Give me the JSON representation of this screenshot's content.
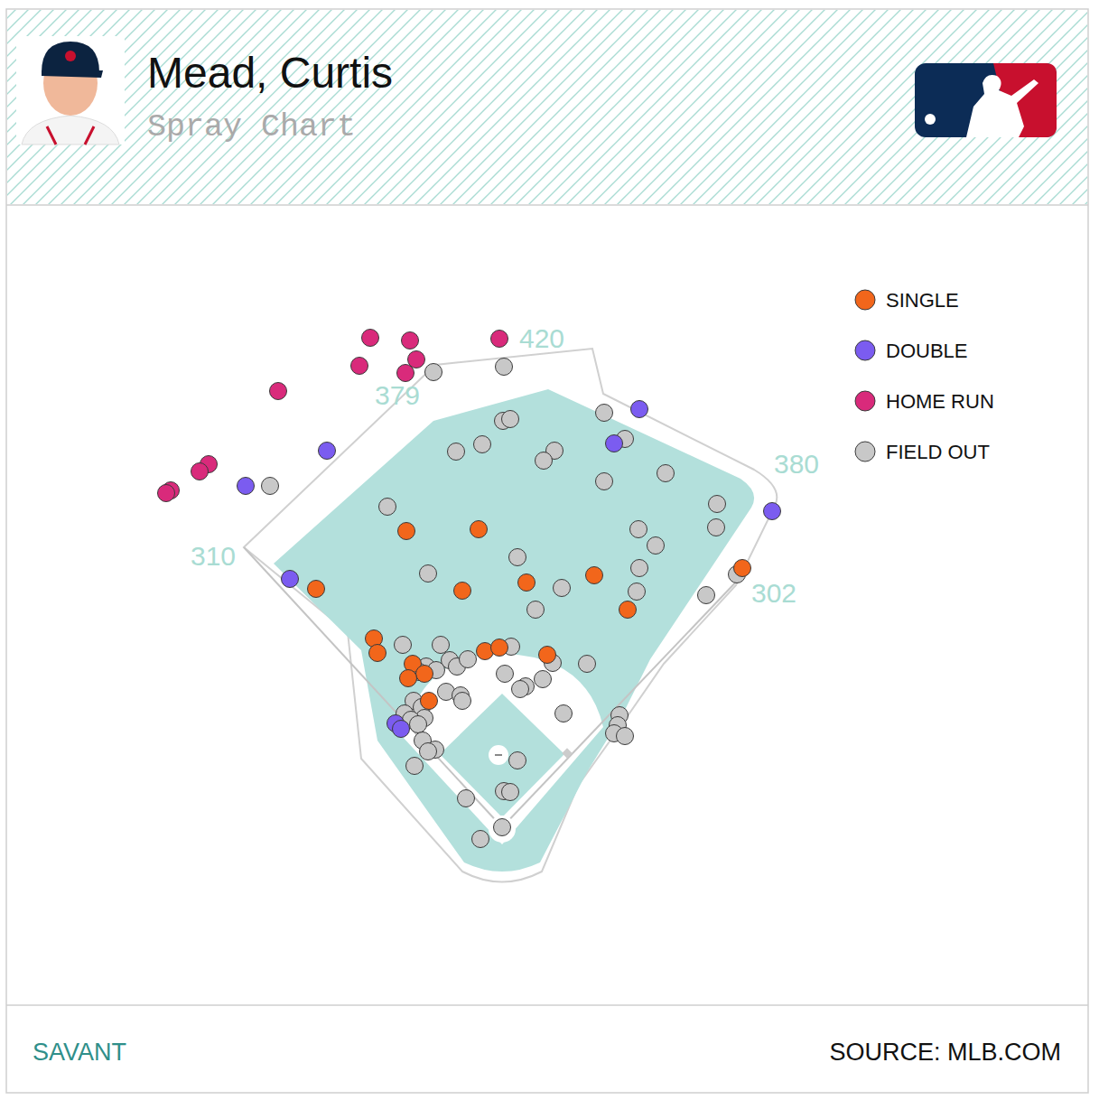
{
  "chart_data": {
    "type": "scatter",
    "title": "Mead, Curtis",
    "subtitle": "Spray Chart",
    "brand": "SAVANT",
    "source": "SOURCE: MLB.COM",
    "xlim": [
      8,
      1205
    ],
    "ylim": [
      1113,
      228
    ],
    "tick_labels": false,
    "grid": false,
    "legend": "upper right",
    "marker": "circle",
    "fence_distances": [
      310,
      379,
      420,
      380,
      302
    ],
    "series": [
      {
        "name": "SINGLE",
        "color": "#f2661b",
        "x": [
          450,
          530,
          350,
          512,
          583,
          658,
          695,
          822,
          414,
          418,
          457,
          470,
          452,
          537,
          553,
          606,
          475
        ],
        "values": [
          588,
          586,
          652,
          654,
          645,
          637,
          675,
          629,
          707,
          723,
          735,
          746,
          751,
          721,
          717,
          725,
          776
        ]
      },
      {
        "name": "DOUBLE",
        "color": "#7b5cf0",
        "x": [
          708,
          680,
          362,
          272,
          855,
          321,
          438,
          444
        ],
        "values": [
          453,
          491,
          499,
          538,
          566,
          641,
          801,
          807
        ]
      },
      {
        "name": "HOME RUN",
        "color": "#d92a7b",
        "x": [
          410,
          454,
          398,
          461,
          449,
          553,
          308,
          231,
          221,
          189,
          184
        ],
        "values": [
          374,
          377,
          405,
          398,
          413,
          375,
          433,
          514,
          522,
          543,
          546
        ]
      },
      {
        "name": "FIELD OUT",
        "color": "#c8c8c8",
        "x": [
          480,
          558,
          557,
          565,
          505,
          534,
          614,
          602,
          669,
          692,
          737,
          669,
          429,
          794,
          793,
          707,
          726,
          573,
          474,
          622,
          708,
          705,
          593,
          782,
          816,
          446,
          488,
          498,
          472,
          483,
          464,
          506,
          518,
          566,
          559,
          612,
          650,
          601,
          582,
          576,
          494,
          510,
          512,
          458,
          467,
          448,
          470,
          455,
          463,
          624,
          686,
          684,
          680,
          692,
          468,
          482,
          474,
          459,
          573,
          558,
          565,
          516,
          556,
          532,
          299
        ],
        "values": [
          412,
          406,
          466,
          464,
          500,
          492,
          499,
          510,
          457,
          486,
          524,
          533,
          561,
          558,
          584,
          586,
          604,
          617,
          635,
          651,
          629,
          655,
          675,
          659,
          636,
          714,
          714,
          731,
          738,
          742,
          744,
          738,
          730,
          716,
          746,
          734,
          735,
          752,
          760,
          763,
          766,
          770,
          776,
          776,
          783,
          790,
          795,
          797,
          802,
          790,
          792,
          803,
          812,
          815,
          820,
          830,
          832,
          848,
          842,
          876,
          877,
          884,
          916,
          929,
          538
        ]
      }
    ]
  }
}
